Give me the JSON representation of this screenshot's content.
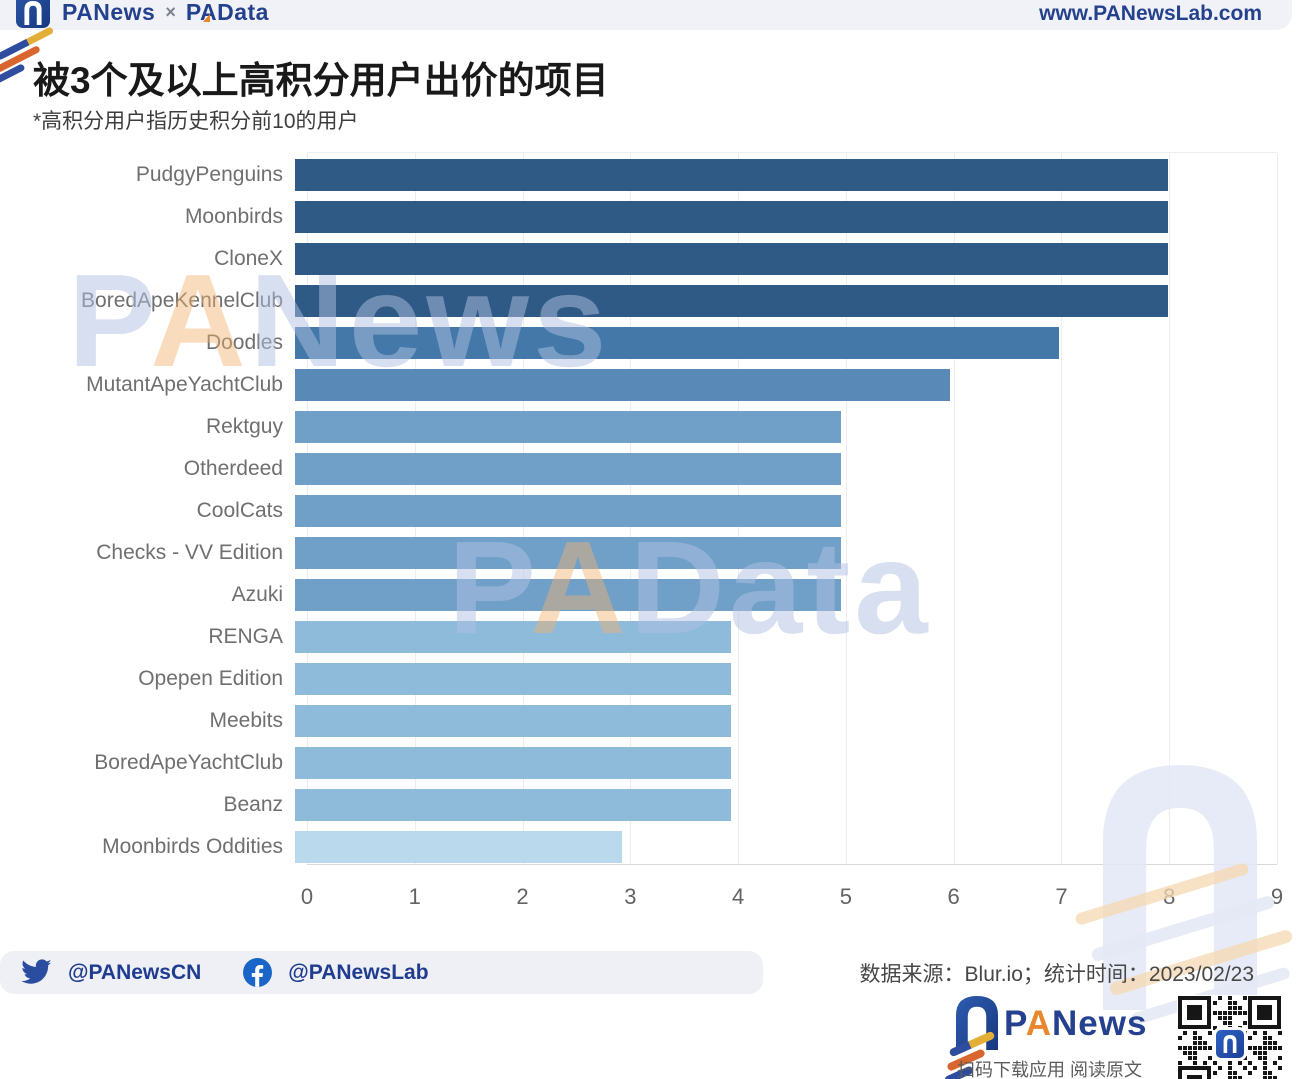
{
  "header": {
    "brand_primary": "PANews",
    "brand_separator": "×",
    "brand_secondary": {
      "pre": "P",
      "accent": "A",
      "post": "Data"
    },
    "site_url": "www.PANewsLab.com"
  },
  "title": "被3个及以上高积分用户出价的项目",
  "subtitle": "*高积分用户指历史积分前10的用户",
  "chart_data": {
    "type": "bar",
    "orientation": "horizontal",
    "title": "被3个及以上高积分用户出价的项目",
    "xlabel": "",
    "ylabel": "",
    "xlim": [
      0,
      9
    ],
    "x_ticks": [
      0,
      1,
      2,
      3,
      4,
      5,
      6,
      7,
      8,
      9
    ],
    "grid": true,
    "categories": [
      "PudgyPenguins",
      "Moonbirds",
      "CloneX",
      "BoredApeKennelClub",
      "Doodles",
      "MutantApeYachtClub",
      "Rektguy",
      "Otherdeed",
      "CoolCats",
      "Checks - VV Edition",
      "Azuki",
      "RENGA",
      "Opepen Edition",
      "Meebits",
      "BoredApeYachtClub",
      "Beanz",
      "Moonbirds Oddities"
    ],
    "values": [
      8,
      8,
      8,
      8,
      7,
      6,
      5,
      5,
      5,
      5,
      5,
      4,
      4,
      4,
      4,
      4,
      3
    ],
    "color_by_value": {
      "8": "#2e5a85",
      "7": "#4378a8",
      "6": "#5889b7",
      "5": "#70a0c8",
      "4": "#8fbbdb",
      "3": "#bad9ed"
    }
  },
  "watermarks": {
    "center_upper": {
      "pre": "P",
      "accent": "A",
      "post": "News"
    },
    "center_lower": {
      "pre": "P",
      "accent": "A",
      "post": "Data"
    }
  },
  "footer": {
    "twitter_handle": "@PANewsCN",
    "facebook_handle": "@PANewsLab",
    "source_note": "数据来源：Blur.io；统计时间：2023/02/23"
  },
  "bottom_brand": {
    "logotype": {
      "pre": "P",
      "accent": "A",
      "post": "News"
    },
    "caption": "扫码下载应用 阅读原文"
  }
}
